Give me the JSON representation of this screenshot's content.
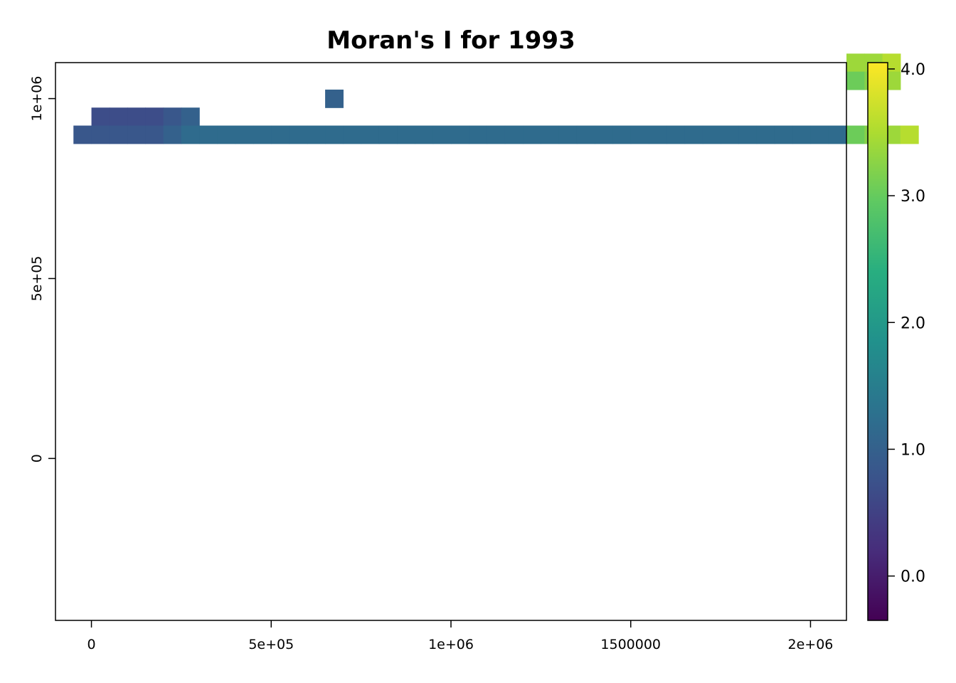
{
  "chart_data": {
    "type": "heatmap",
    "title": "Moran's I for 1993",
    "xlabel": "",
    "ylabel": "",
    "x_ticks": [
      {
        "value": 0,
        "label": "0"
      },
      {
        "value": 500000,
        "label": "5e+05"
      },
      {
        "value": 1000000,
        "label": "1e+06"
      },
      {
        "value": 1500000,
        "label": "1500000"
      },
      {
        "value": 2000000,
        "label": "2e+06"
      }
    ],
    "y_ticks": [
      {
        "value": 0,
        "label": "0"
      },
      {
        "value": 500000,
        "label": "5e+05"
      },
      {
        "value": 1000000,
        "label": "1e+06"
      }
    ],
    "xlim": [
      -100000,
      2100000
    ],
    "ylim": [
      -450000,
      1100000
    ],
    "grid": {
      "x0": -100000,
      "y0": 1125000,
      "cell": 50000
    },
    "colorbar": {
      "range": [
        -0.35,
        4.05
      ],
      "ticks": [
        {
          "value": 0.0,
          "label": "0.0"
        },
        {
          "value": 1.0,
          "label": "1.0"
        },
        {
          "value": 2.0,
          "label": "2.0"
        },
        {
          "value": 3.0,
          "label": "3.0"
        },
        {
          "value": 4.0,
          "label": "4.0"
        }
      ],
      "colormap": [
        "#440154",
        "#472d7b",
        "#3b528b",
        "#2c728e",
        "#21918c",
        "#28ae80",
        "#5ec962",
        "#addc30",
        "#fde725"
      ],
      "position": "right"
    },
    "rows": [
      "............................................wwx.",
      "............................................uvw.",
      "...............i................................",
      "..gggghi.........................................",
      ".hhhhhijjjjjjjjjjjjjjjjjjjjjjjjjjjjjjjjjjjjjuvwx.",
      "..."
    ]
  }
}
